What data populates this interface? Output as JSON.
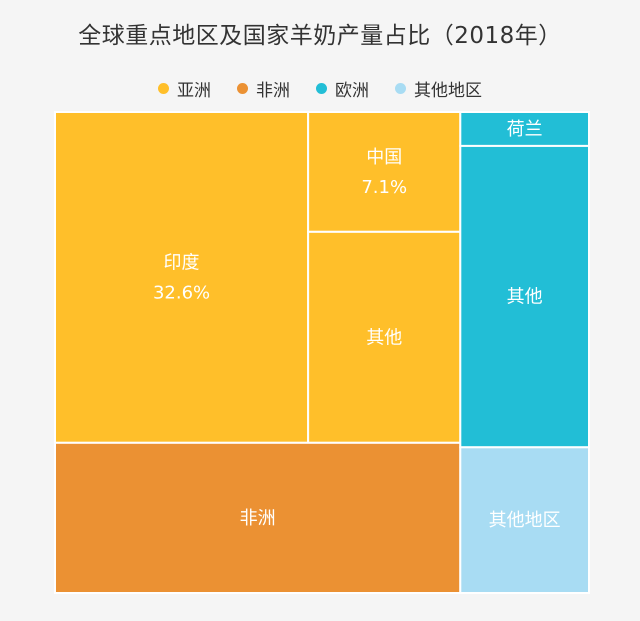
{
  "chart_data": {
    "type": "treemap",
    "title": "全球重点地区及国家羊奶产量占比（2018年）",
    "legend": {
      "placement": "top-center",
      "entries": [
        {
          "name": "亚洲",
          "color": "#ffbf2a"
        },
        {
          "name": "非洲",
          "color": "#eb9133"
        },
        {
          "name": "欧洲",
          "color": "#22bed6"
        },
        {
          "name": "其他地区",
          "color": "#a8dcf3"
        }
      ]
    },
    "cells": [
      {
        "group": "亚洲",
        "label": "印度",
        "value": 32.6,
        "value_label": "32.6%"
      },
      {
        "group": "亚洲",
        "label": "中国",
        "value": 7.1,
        "value_label": "7.1%"
      },
      {
        "group": "亚洲",
        "label": "其他",
        "value": 12.5
      },
      {
        "group": "非洲",
        "label": "非洲",
        "value": 23.7
      },
      {
        "group": "欧洲",
        "label": "荷兰",
        "value": 1.7
      },
      {
        "group": "欧洲",
        "label": "其他",
        "value": 15.1
      },
      {
        "group": "其他地区",
        "label": "其他地区",
        "value": 7.3
      }
    ],
    "colors": {
      "亚洲": "#ffbf2a",
      "非洲": "#eb9133",
      "欧洲": "#22bed6",
      "其他地区": "#a8dcf3",
      "label": "#ffffff"
    }
  }
}
